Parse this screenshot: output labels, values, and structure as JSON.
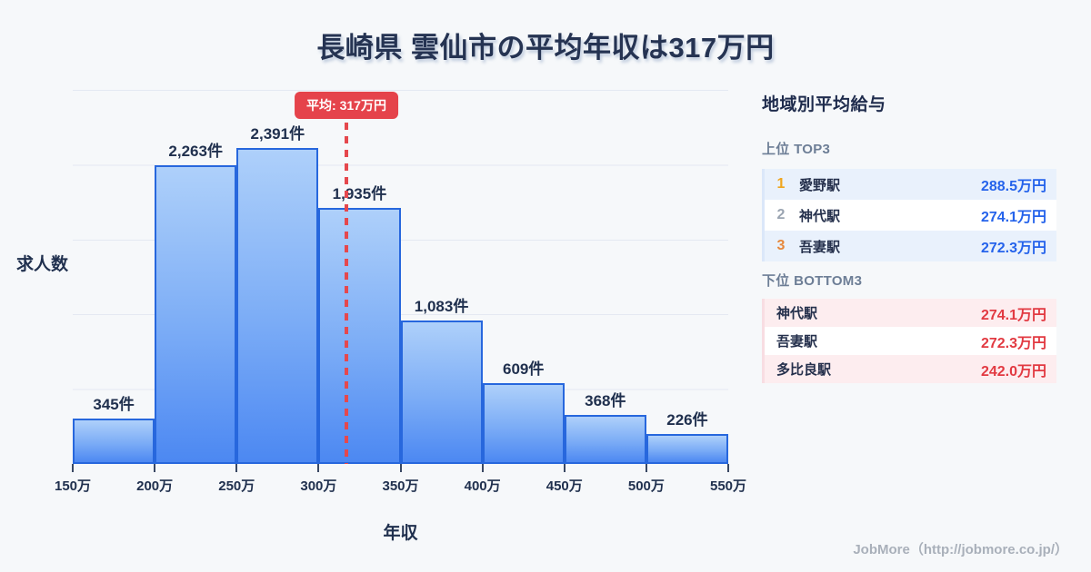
{
  "title": "長崎県 雲仙市の平均年収は317万円",
  "chart_data": {
    "type": "bar",
    "title": "長崎県 雲仙市の平均年収は317万円",
    "xlabel": "年収",
    "ylabel": "求人数",
    "bin_edges": [
      "150万",
      "200万",
      "250万",
      "300万",
      "350万",
      "400万",
      "450万",
      "500万",
      "550万"
    ],
    "bin_edges_man_yen": [
      150,
      200,
      250,
      300,
      350,
      400,
      450,
      500,
      550
    ],
    "values": [
      345,
      2263,
      2391,
      1935,
      1083,
      609,
      368,
      226
    ],
    "bar_labels": [
      "345件",
      "2,263件",
      "2,391件",
      "1,935件",
      "1,083件",
      "609件",
      "368件",
      "226件"
    ],
    "average": {
      "label": "平均: 317万円",
      "value": 317
    },
    "xlim": [
      150,
      550
    ],
    "ylim": [
      0,
      2830
    ],
    "grid": "horizontal",
    "legend": "none",
    "colors": {
      "bar_fill_top": "#aed0fa",
      "bar_fill_bottom": "#4c88f2",
      "bar_border": "#2767dd",
      "average_line": "#e5484d",
      "average_pill_bg": "#e5434b",
      "average_pill_text": "#ffffff"
    }
  },
  "sidebar": {
    "title": "地域別平均給与",
    "top": {
      "label": "上位 TOP3",
      "value_color": "#2563eb",
      "rank_colors": {
        "rank1": "#efa51e",
        "rank2": "#9aa4b1",
        "rank3": "#e6873b"
      },
      "rows": [
        {
          "rank": "1",
          "name": "愛野駅",
          "value": "288.5万円"
        },
        {
          "rank": "2",
          "name": "神代駅",
          "value": "274.1万円"
        },
        {
          "rank": "3",
          "name": "吾妻駅",
          "value": "272.3万円"
        }
      ]
    },
    "bottom": {
      "label": "下位 BOTTOM3",
      "value_color": "#e23a42",
      "rows": [
        {
          "name": "神代駅",
          "value": "274.1万円"
        },
        {
          "name": "吾妻駅",
          "value": "272.3万円"
        },
        {
          "name": "多比良駅",
          "value": "242.0万円"
        }
      ]
    }
  },
  "footer": {
    "credit": "JobMore（http://jobmore.co.jp/）"
  }
}
